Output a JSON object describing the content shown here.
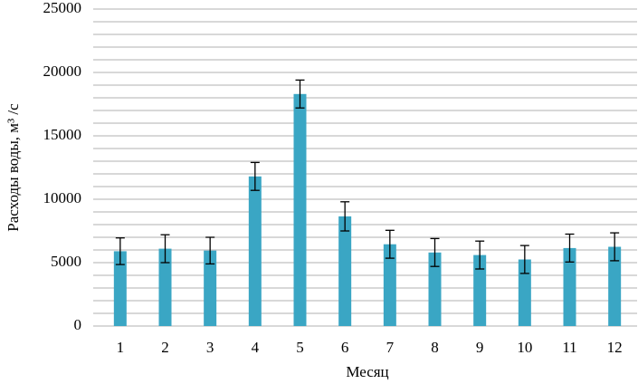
{
  "chart_data": {
    "type": "bar",
    "y_label": "Расходы воды, м³ /с",
    "x_label": "Месяц",
    "categories": [
      "1",
      "2",
      "3",
      "4",
      "5",
      "6",
      "7",
      "8",
      "9",
      "10",
      "11",
      "12"
    ],
    "values": [
      5900,
      6100,
      5950,
      11800,
      18300,
      8650,
      6450,
      5800,
      5600,
      5250,
      6150,
      6250
    ],
    "errors": [
      1050,
      1100,
      1050,
      1100,
      1100,
      1150,
      1100,
      1100,
      1100,
      1100,
      1100,
      1100
    ],
    "color": "#3aa6c4",
    "ylim": [
      0,
      25000
    ],
    "yticks": [
      0,
      5000,
      10000,
      15000,
      20000,
      25000
    ],
    "minor_yticks": [
      1000,
      2000,
      3000,
      4000,
      6000,
      7000,
      8000,
      9000,
      11000,
      12000,
      13000,
      14000,
      16000,
      17000,
      18000,
      19000,
      21000,
      22000,
      23000,
      24000
    ],
    "grid": true
  }
}
